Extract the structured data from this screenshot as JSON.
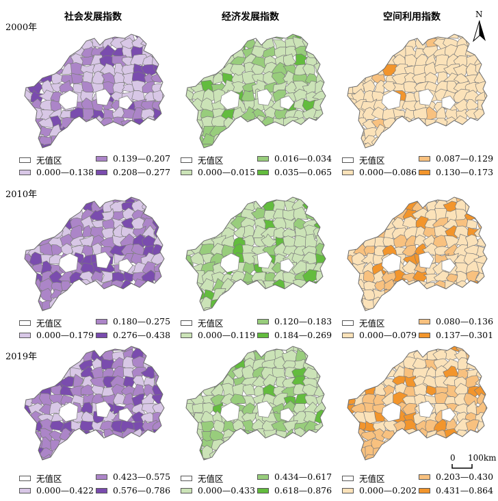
{
  "column_titles": [
    "社会发展指数",
    "经济发展指数",
    "空间利用指数"
  ],
  "years": [
    "2000年",
    "2010年",
    "2019年"
  ],
  "nodata_label": "无值区",
  "nodata_color": "#ffffff",
  "palettes": {
    "social": [
      "#d8c7e6",
      "#ac85c8",
      "#7a4cae"
    ],
    "economic": [
      "#cbe3b7",
      "#98cd7c",
      "#63bc3e"
    ],
    "spatial": [
      "#fbe2b9",
      "#f8c17f",
      "#f2952c"
    ]
  },
  "rows": [
    {
      "year": "2000年",
      "panels": [
        {
          "index": "社会发展指数",
          "classes": [
            "0.000—0.138",
            "0.139—0.207",
            "0.208—0.277"
          ],
          "shares": [
            0.46,
            0.4,
            0.14
          ]
        },
        {
          "index": "经济发展指数",
          "classes": [
            "0.000—0.015",
            "0.016—0.034",
            "0.035—0.065"
          ],
          "shares": [
            0.7,
            0.22,
            0.08
          ]
        },
        {
          "index": "空间利用指数",
          "classes": [
            "0.000—0.086",
            "0.087—0.129",
            "0.130—0.173"
          ],
          "shares": [
            0.93,
            0.04,
            0.03
          ]
        }
      ]
    },
    {
      "year": "2010年",
      "panels": [
        {
          "index": "社会发展指数",
          "classes": [
            "0.000—0.179",
            "0.180—0.275",
            "0.276—0.438"
          ],
          "shares": [
            0.34,
            0.44,
            0.22
          ]
        },
        {
          "index": "经济发展指数",
          "classes": [
            "0.000—0.119",
            "0.120—0.183",
            "0.184—0.269"
          ],
          "shares": [
            0.72,
            0.2,
            0.08
          ]
        },
        {
          "index": "空间利用指数",
          "classes": [
            "0.000—0.079",
            "0.080—0.136",
            "0.137—0.301"
          ],
          "shares": [
            0.56,
            0.32,
            0.12
          ]
        }
      ]
    },
    {
      "year": "2019年",
      "panels": [
        {
          "index": "社会发展指数",
          "classes": [
            "0.000—0.422",
            "0.423—0.575",
            "0.576—0.786"
          ],
          "shares": [
            0.3,
            0.42,
            0.28
          ]
        },
        {
          "index": "经济发展指数",
          "classes": [
            "0.000—0.433",
            "0.434—0.617",
            "0.618—0.876"
          ],
          "shares": [
            0.66,
            0.24,
            0.1
          ]
        },
        {
          "index": "空间利用指数",
          "classes": [
            "0.000—0.202",
            "0.203—0.430",
            "0.431—0.864"
          ],
          "shares": [
            0.52,
            0.34,
            0.14
          ]
        }
      ]
    }
  ],
  "north_arrow": {
    "label": "N"
  },
  "scale_bar": {
    "start": "0",
    "end": "100km"
  }
}
